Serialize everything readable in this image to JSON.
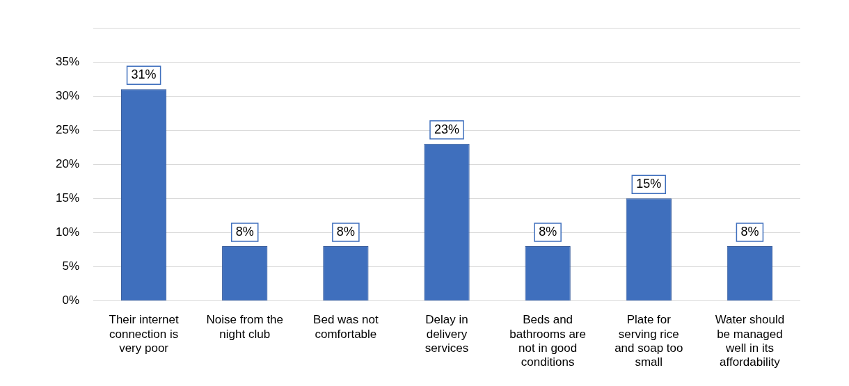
{
  "chart_data": {
    "type": "bar",
    "categories": [
      "Their internet connection is very poor",
      "Noise from the night club",
      "Bed was not comfortable",
      "Delay in delivery services",
      "Beds and bathrooms are not in good conditions",
      "Plate for serving rice and soap too small",
      "Water should be managed well in its affordability"
    ],
    "values": [
      31,
      8,
      8,
      23,
      8,
      15,
      8
    ],
    "value_labels": [
      "31%",
      "8%",
      "8%",
      "23%",
      "8%",
      "15%",
      "8%"
    ],
    "color": "#3f6fbd",
    "ylim": [
      0,
      40
    ],
    "yticks": [
      {
        "value": 0,
        "label": "0%"
      },
      {
        "value": 5,
        "label": "5%"
      },
      {
        "value": 10,
        "label": "10%"
      },
      {
        "value": 15,
        "label": "15%"
      },
      {
        "value": 20,
        "label": "20%"
      },
      {
        "value": 25,
        "label": "25%"
      },
      {
        "value": 30,
        "label": "30%"
      },
      {
        "value": 35,
        "label": "35%"
      },
      {
        "value": 40,
        "label": null
      }
    ],
    "grid": "y",
    "legend": false
  }
}
